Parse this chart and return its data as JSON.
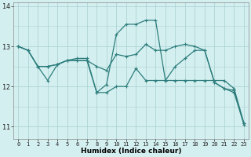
{
  "xlabel": "Humidex (Indice chaleur)",
  "bg_color": "#d4efef",
  "grid_color": "#aed4d4",
  "line_color": "#2d7d7d",
  "xlim": [
    -0.5,
    23.5
  ],
  "ylim": [
    10.7,
    14.1
  ],
  "yticks": [
    11,
    12,
    13
  ],
  "ytick_top": 14,
  "xticks": [
    0,
    1,
    2,
    3,
    4,
    5,
    6,
    7,
    8,
    9,
    10,
    11,
    12,
    13,
    14,
    15,
    16,
    17,
    18,
    19,
    20,
    21,
    22,
    23
  ],
  "line_max_x": [
    0,
    1,
    2,
    3,
    4,
    5,
    6,
    7,
    8,
    9,
    10,
    11,
    12,
    13,
    14,
    15,
    16,
    17,
    18,
    19,
    20,
    21,
    22,
    23
  ],
  "line_max_y": [
    13.0,
    12.9,
    12.5,
    12.5,
    12.55,
    12.65,
    12.65,
    12.65,
    11.85,
    12.05,
    13.3,
    13.55,
    13.55,
    13.65,
    13.65,
    12.15,
    12.5,
    12.7,
    12.9,
    12.9,
    12.1,
    11.95,
    11.9,
    11.08
  ],
  "line_min_x": [
    0,
    1,
    2,
    3,
    4,
    5,
    6,
    7,
    8,
    9,
    10,
    11,
    12,
    13,
    14,
    15,
    16,
    17,
    18,
    19,
    20,
    21,
    22,
    23
  ],
  "line_min_y": [
    13.0,
    12.9,
    12.5,
    12.15,
    12.55,
    12.65,
    12.7,
    12.7,
    11.85,
    11.85,
    12.0,
    12.0,
    12.45,
    12.15,
    12.15,
    12.15,
    12.15,
    12.15,
    12.15,
    12.15,
    12.15,
    12.15,
    11.95,
    11.08
  ],
  "line_avg_x": [
    0,
    1,
    2,
    3,
    4,
    5,
    6,
    7,
    8,
    9,
    10,
    11,
    12,
    13,
    14,
    15,
    16,
    17,
    18,
    19,
    20,
    21,
    22,
    23
  ],
  "line_avg_y": [
    13.0,
    12.9,
    12.5,
    12.5,
    12.55,
    12.65,
    12.65,
    12.65,
    12.5,
    12.4,
    12.8,
    12.75,
    12.8,
    13.05,
    12.9,
    12.9,
    13.0,
    13.05,
    13.0,
    12.9,
    12.1,
    11.95,
    11.85,
    11.05
  ]
}
